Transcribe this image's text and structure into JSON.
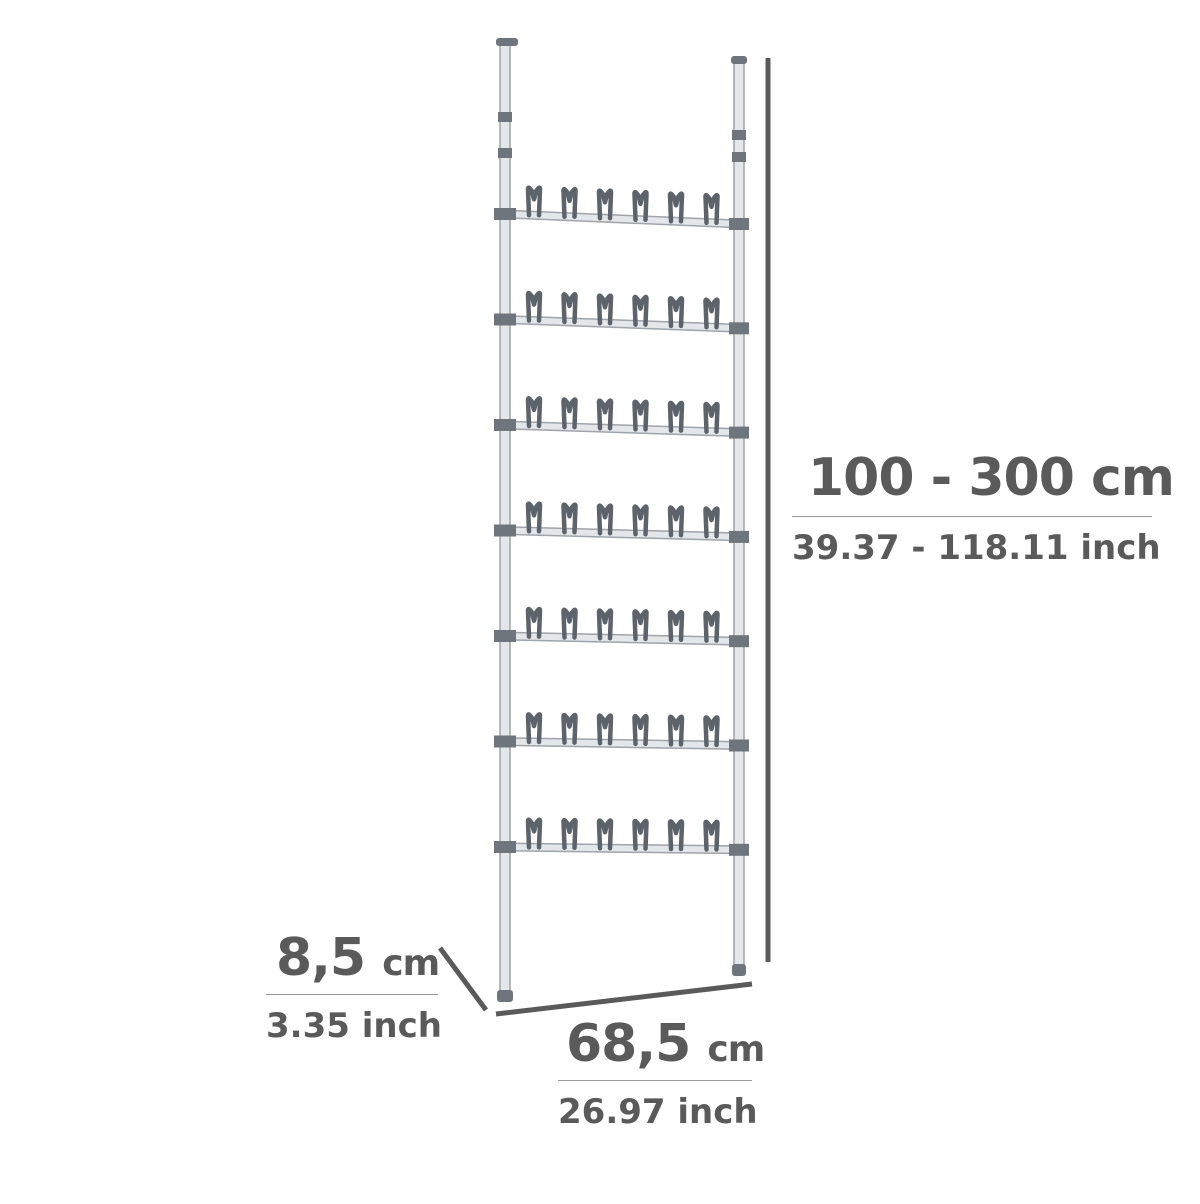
{
  "colors": {
    "pole": "#e4e7ea",
    "pole_edge": "#9ea4aa",
    "fitting": "#6f757c",
    "hook": "#5d636a",
    "dim_line": "#5a5a5a",
    "text": "#5a5a5a"
  },
  "product": {
    "rack_count": 7,
    "hooks_per_rack": 6
  },
  "dimensions": {
    "height": {
      "metric_value": "100 - 300 cm",
      "imperial": "39.37 - 118.11 inch"
    },
    "width": {
      "metric_number": "68,5",
      "metric_unit": "cm",
      "imperial": "26.97 inch"
    },
    "depth": {
      "metric_number": "8,5",
      "metric_unit": "cm",
      "imperial": "3.35 inch"
    }
  }
}
